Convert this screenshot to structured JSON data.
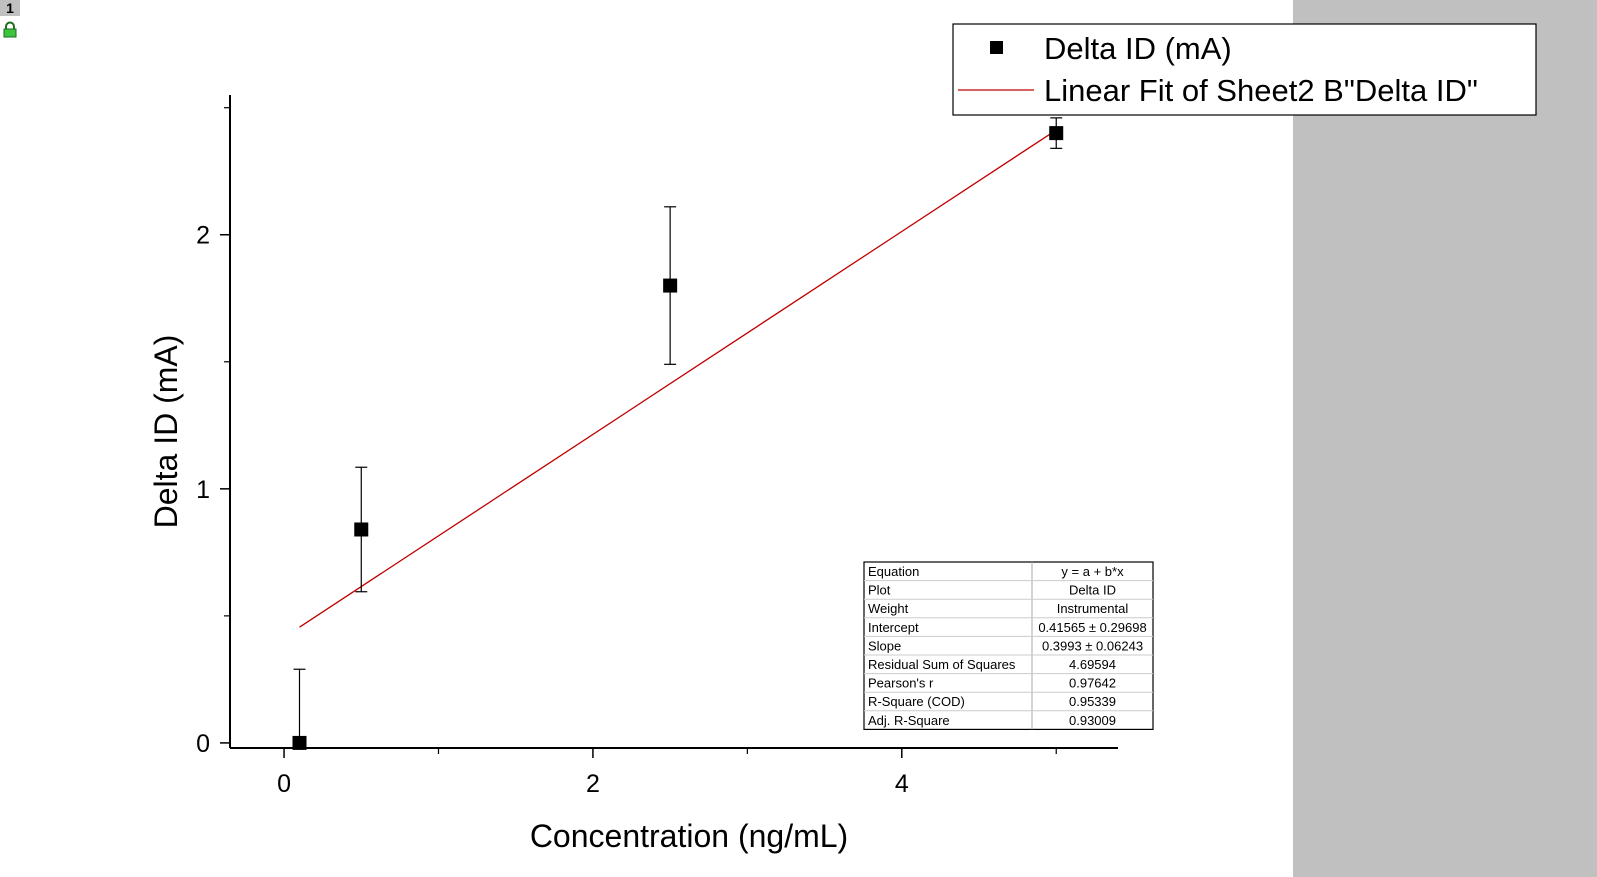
{
  "page_badge": "1",
  "chart_data": {
    "type": "scatter",
    "xlabel": "Concentration (ng/mL)",
    "ylabel": "Delta ID (mA)",
    "xlim": [
      -0.35,
      5.4
    ],
    "ylim": [
      -0.02,
      2.55
    ],
    "xticks": [
      0,
      2,
      4
    ],
    "xminor_ticks": [
      1,
      3,
      5
    ],
    "yticks": [
      0,
      1,
      2
    ],
    "yminor_ticks": [
      0.5,
      1.5,
      2.5
    ],
    "grid": false,
    "legend_position": "top-right",
    "series": [
      {
        "name": "Delta ID (mA)",
        "kind": "scatter",
        "marker": "square",
        "color": "#000000",
        "points": [
          {
            "x": 0.1,
            "y": 0.0,
            "err": 0.29
          },
          {
            "x": 0.5,
            "y": 0.84,
            "err": 0.245
          },
          {
            "x": 2.5,
            "y": 1.8,
            "err": 0.31
          },
          {
            "x": 5.0,
            "y": 2.4,
            "err": 0.06
          }
        ]
      },
      {
        "name": "Linear Fit of Sheet2 B\"Delta ID\"",
        "kind": "line",
        "color": "#c00000",
        "x": [
          0.1,
          5.0
        ],
        "y": [
          0.45558,
          2.41215
        ]
      }
    ],
    "stats_table": [
      [
        "Equation",
        "y = a + b*x"
      ],
      [
        "Plot",
        "Delta ID"
      ],
      [
        "Weight",
        "Instrumental"
      ],
      [
        "Intercept",
        "0.41565 ± 0.29698"
      ],
      [
        "Slope",
        "0.3993 ± 0.06243"
      ],
      [
        "Residual Sum of Squares",
        "4.69594"
      ],
      [
        "Pearson's r",
        "0.97642"
      ],
      [
        "R-Square (COD)",
        "0.95339"
      ],
      [
        "Adj. R-Square",
        "0.93009"
      ]
    ]
  }
}
